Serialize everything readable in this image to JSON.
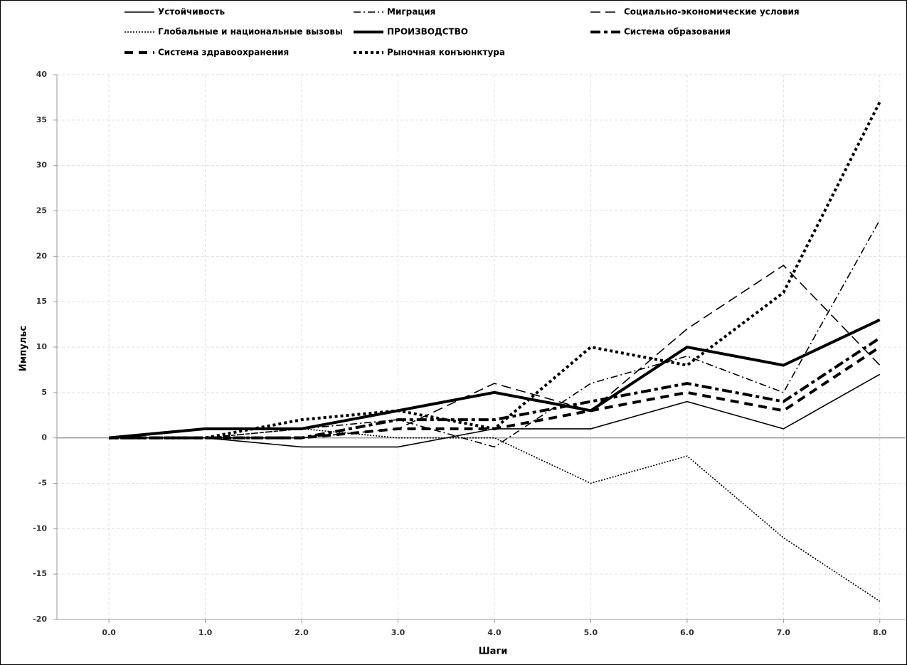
{
  "chart_data": {
    "type": "line",
    "x_label": "Шаги",
    "y_label": "Импульс",
    "x": [
      0,
      1,
      2,
      3,
      4,
      5,
      6,
      7,
      8
    ],
    "xlim": [
      -0.54,
      8.26
    ],
    "xticks": [
      {
        "value": 0,
        "label": "0.0"
      },
      {
        "value": 1,
        "label": "1.0"
      },
      {
        "value": 2,
        "label": "2.0"
      },
      {
        "value": 3,
        "label": "3.0"
      },
      {
        "value": 4,
        "label": "4.0"
      },
      {
        "value": 5,
        "label": "5.0"
      },
      {
        "value": 6,
        "label": "6.0"
      },
      {
        "value": 7,
        "label": "7.0"
      },
      {
        "value": 8,
        "label": "8.0"
      }
    ],
    "ylim": [
      -20,
      40
    ],
    "yticks": [
      -20,
      -15,
      -10,
      -5,
      0,
      5,
      10,
      15,
      20,
      25,
      30,
      35,
      40
    ],
    "grid": true,
    "legend": "top",
    "series": [
      {
        "name": "Устойчивость",
        "color": "#000000",
        "style": "solid",
        "weight": "thin",
        "values": [
          0,
          0,
          -1,
          -1,
          1,
          1,
          4,
          1,
          7
        ]
      },
      {
        "name": "Миграция",
        "color": "#000000",
        "style": "dashdot",
        "weight": "thin",
        "values": [
          0,
          0,
          1,
          2,
          -1,
          6,
          9,
          5,
          24
        ]
      },
      {
        "name": "Социально-экономические условия",
        "color": "#000000",
        "style": "dash",
        "weight": "thin",
        "values": [
          0,
          0,
          0,
          1,
          6,
          3,
          12,
          19,
          8
        ]
      },
      {
        "name": "Глобальные и национальные вызовы",
        "color": "#000000",
        "style": "dot",
        "weight": "thin",
        "values": [
          0,
          0,
          1,
          0,
          0,
          -5,
          -2,
          -11,
          -18
        ]
      },
      {
        "name": "ПРОИЗВОДСТВО",
        "color": "#000000",
        "style": "solid",
        "weight": "bold",
        "values": [
          0,
          1,
          1,
          3,
          5,
          3,
          10,
          8,
          13
        ]
      },
      {
        "name": "Система образования",
        "color": "#000000",
        "style": "dashdot",
        "weight": "bold",
        "values": [
          0,
          0,
          0,
          2,
          2,
          4,
          6,
          4,
          11
        ]
      },
      {
        "name": "Система здравоохранения",
        "color": "#000000",
        "style": "dash",
        "weight": "bold",
        "values": [
          0,
          0,
          0,
          1,
          1,
          3,
          5,
          3,
          10
        ]
      },
      {
        "name": "Рыночная конъюнктура",
        "color": "#000000",
        "style": "dot",
        "weight": "bold",
        "values": [
          0,
          0,
          2,
          3,
          1,
          10,
          8,
          16,
          37
        ]
      }
    ]
  }
}
